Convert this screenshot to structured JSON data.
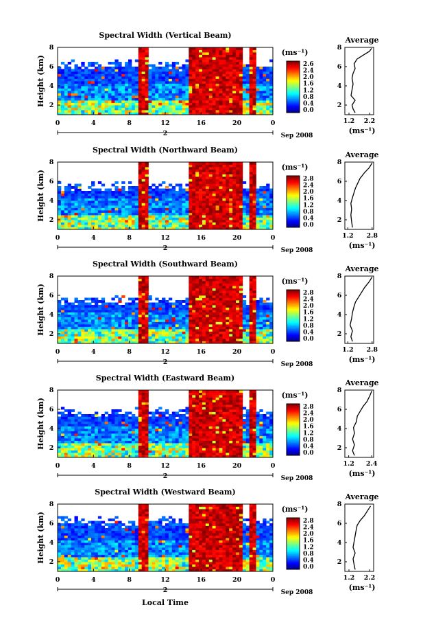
{
  "chart_data": [
    {
      "type": "heatmap",
      "title": "Spectral Width (Vertical Beam)",
      "ylabel": "Height (km)",
      "xticks": [
        "0",
        "4",
        "8",
        "12",
        "16",
        "20",
        "0"
      ],
      "xlim": [
        0,
        24
      ],
      "ylim": [
        1,
        8
      ],
      "yticks": [
        "2",
        "4",
        "6",
        "8"
      ],
      "date_day": "2",
      "date_label": "Sep 2008",
      "colorbar": {
        "unit": "(ms⁻¹)",
        "ticks": [
          "2.6",
          "2.4",
          "2.0",
          "1.6",
          "1.2",
          "0.8",
          "0.4",
          "0.0"
        ]
      },
      "red_bands_hours": [
        [
          9.0,
          10.0
        ],
        [
          14.5,
          18.6
        ],
        [
          18.9,
          20.5
        ],
        [
          21.2,
          22.3
        ]
      ],
      "cloud_top_km": 6.2,
      "average": {
        "title": "Average",
        "xlabel": "(ms⁻¹)",
        "xticks": [
          "1.2",
          "2.2"
        ],
        "xlim": [
          1.0,
          2.4
        ],
        "profile": [
          [
            1.5,
            1.2
          ],
          [
            1.4,
            1.6
          ],
          [
            1.35,
            2.0
          ],
          [
            1.5,
            2.5
          ],
          [
            1.3,
            3.0
          ],
          [
            1.35,
            3.6
          ],
          [
            1.4,
            4.2
          ],
          [
            1.35,
            4.8
          ],
          [
            1.4,
            5.3
          ],
          [
            1.5,
            5.8
          ],
          [
            1.45,
            6.3
          ],
          [
            1.6,
            6.8
          ],
          [
            1.9,
            7.2
          ],
          [
            2.2,
            7.6
          ],
          [
            2.3,
            7.9
          ]
        ]
      }
    },
    {
      "type": "heatmap",
      "title": "Spectral Width (Northward Beam)",
      "ylabel": "Height (km)",
      "xticks": [
        "0",
        "4",
        "8",
        "12",
        "16",
        "20",
        "0"
      ],
      "xlim": [
        0,
        24
      ],
      "ylim": [
        1,
        8
      ],
      "yticks": [
        "2",
        "4",
        "6",
        "8"
      ],
      "date_day": "2",
      "date_label": "Sep 2008",
      "colorbar": {
        "unit": "(ms⁻¹)",
        "ticks": [
          "2.8",
          "2.4",
          "2.0",
          "1.6",
          "1.2",
          "0.8",
          "0.4",
          "0.0"
        ]
      },
      "red_bands_hours": [
        [
          9.0,
          10.0
        ],
        [
          14.5,
          18.6
        ],
        [
          18.9,
          20.5
        ],
        [
          21.2,
          22.3
        ]
      ],
      "cloud_top_km": 5.5,
      "average": {
        "title": "Average",
        "xlabel": "(ms⁻¹)",
        "xticks": [
          "1.2",
          "2.8"
        ],
        "xlim": [
          1.0,
          2.9
        ],
        "profile": [
          [
            1.5,
            1.2
          ],
          [
            1.45,
            1.8
          ],
          [
            1.4,
            2.5
          ],
          [
            1.45,
            3.1
          ],
          [
            1.4,
            3.7
          ],
          [
            1.5,
            4.3
          ],
          [
            1.6,
            4.8
          ],
          [
            1.7,
            5.3
          ],
          [
            1.85,
            5.8
          ],
          [
            2.0,
            6.3
          ],
          [
            2.3,
            6.9
          ],
          [
            2.6,
            7.4
          ],
          [
            2.8,
            7.9
          ]
        ]
      }
    },
    {
      "type": "heatmap",
      "title": "Spectral Width (Southward Beam)",
      "ylabel": "Height (km)",
      "xticks": [
        "0",
        "4",
        "8",
        "12",
        "16",
        "20",
        "0"
      ],
      "xlim": [
        0,
        24
      ],
      "ylim": [
        1,
        8
      ],
      "yticks": [
        "2",
        "4",
        "6",
        "8"
      ],
      "date_day": "2",
      "date_label": "Sep 2008",
      "colorbar": {
        "unit": "(ms⁻¹)",
        "ticks": [
          "2.8",
          "2.4",
          "2.0",
          "1.6",
          "1.2",
          "0.8",
          "0.4",
          "0.0"
        ]
      },
      "red_bands_hours": [
        [
          9.0,
          10.0
        ],
        [
          14.5,
          18.6
        ],
        [
          18.9,
          20.5
        ],
        [
          21.2,
          22.3
        ]
      ],
      "cloud_top_km": 5.5,
      "average": {
        "title": "Average",
        "xlabel": "(ms⁻¹)",
        "xticks": [
          "1.2",
          "2.8"
        ],
        "xlim": [
          1.0,
          2.9
        ],
        "profile": [
          [
            1.5,
            1.2
          ],
          [
            1.4,
            1.7
          ],
          [
            1.5,
            2.3
          ],
          [
            1.35,
            2.9
          ],
          [
            1.45,
            3.6
          ],
          [
            1.5,
            4.2
          ],
          [
            1.6,
            4.8
          ],
          [
            1.7,
            5.3
          ],
          [
            1.9,
            5.8
          ],
          [
            2.1,
            6.3
          ],
          [
            2.3,
            6.8
          ],
          [
            2.6,
            7.4
          ],
          [
            2.8,
            7.9
          ]
        ]
      }
    },
    {
      "type": "heatmap",
      "title": "Spectral Width (Eastward Beam)",
      "ylabel": "Height (km)",
      "xticks": [
        "0",
        "4",
        "8",
        "12",
        "16",
        "20",
        "0"
      ],
      "xlim": [
        0,
        24
      ],
      "ylim": [
        1,
        8
      ],
      "yticks": [
        "2",
        "4",
        "6",
        "8"
      ],
      "date_day": "2",
      "date_label": "Sep 2008",
      "colorbar": {
        "unit": "(ms⁻¹)",
        "ticks": [
          "2.8",
          "2.4",
          "2.0",
          "1.6",
          "1.2",
          "0.8",
          "0.4",
          "0.0"
        ]
      },
      "red_bands_hours": [
        [
          9.0,
          10.0
        ],
        [
          14.5,
          18.6
        ],
        [
          18.9,
          20.5
        ],
        [
          21.2,
          22.3
        ]
      ],
      "cloud_top_km": 5.7,
      "average": {
        "title": "Average",
        "xlabel": "(ms⁻¹)",
        "xticks": [
          "1.2",
          "2.4"
        ],
        "xlim": [
          1.0,
          2.5
        ],
        "profile": [
          [
            1.5,
            1.2
          ],
          [
            1.4,
            1.7
          ],
          [
            1.5,
            2.3
          ],
          [
            1.4,
            2.9
          ],
          [
            1.5,
            3.5
          ],
          [
            1.45,
            4.1
          ],
          [
            1.6,
            4.7
          ],
          [
            1.65,
            5.3
          ],
          [
            1.8,
            5.8
          ],
          [
            1.95,
            6.3
          ],
          [
            2.15,
            6.8
          ],
          [
            2.3,
            7.4
          ],
          [
            2.4,
            7.9
          ]
        ]
      }
    },
    {
      "type": "heatmap",
      "title": "Spectral Width (Westward Beam)",
      "ylabel": "Height (km)",
      "xlabel": "Local Time",
      "xticks": [
        "0",
        "4",
        "8",
        "12",
        "16",
        "20",
        "0"
      ],
      "xlim": [
        0,
        24
      ],
      "ylim": [
        1,
        8
      ],
      "yticks": [
        "2",
        "4",
        "6",
        "8"
      ],
      "date_day": "2",
      "date_label": "Sep 2008",
      "colorbar": {
        "unit": "(ms⁻¹)",
        "ticks": [
          "2.8",
          "2.4",
          "2.0",
          "1.6",
          "1.2",
          "0.8",
          "0.4",
          "0.0"
        ]
      },
      "red_bands_hours": [
        [
          9.0,
          10.0
        ],
        [
          14.5,
          18.6
        ],
        [
          18.9,
          20.5
        ],
        [
          21.2,
          22.3
        ]
      ],
      "cloud_top_km": 6.2,
      "average": {
        "title": "Average",
        "xlabel": "(ms⁻¹)",
        "xticks": [
          "1.2",
          "2.2"
        ],
        "xlim": [
          1.0,
          2.4
        ],
        "profile": [
          [
            1.5,
            1.2
          ],
          [
            1.45,
            1.7
          ],
          [
            1.4,
            2.3
          ],
          [
            1.5,
            2.9
          ],
          [
            1.4,
            3.5
          ],
          [
            1.45,
            4.1
          ],
          [
            1.5,
            4.7
          ],
          [
            1.55,
            5.3
          ],
          [
            1.6,
            5.8
          ],
          [
            1.75,
            6.3
          ],
          [
            1.95,
            6.8
          ],
          [
            2.1,
            7.3
          ],
          [
            2.25,
            7.8
          ]
        ]
      }
    }
  ]
}
